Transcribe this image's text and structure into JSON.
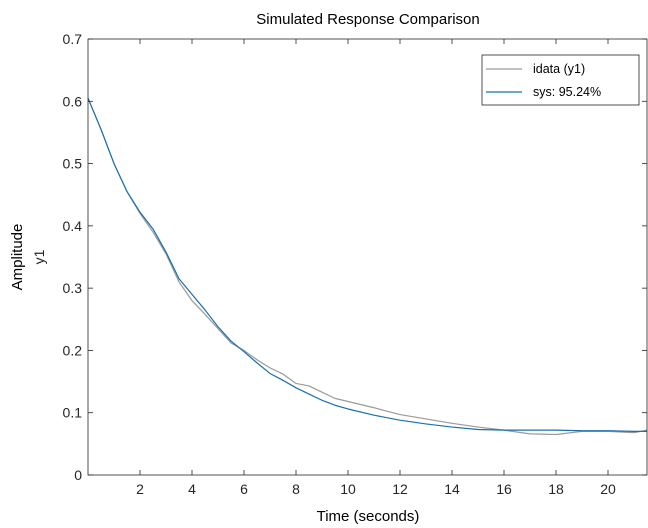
{
  "chart_data": {
    "type": "line",
    "title": "Simulated Response Comparison",
    "xlabel": "Time (seconds)",
    "ylabel": "Amplitude",
    "output_channel_label": "y1",
    "xlim": [
      0,
      21.5
    ],
    "ylim": [
      0,
      0.7
    ],
    "x_ticks": [
      2,
      4,
      6,
      8,
      10,
      12,
      14,
      16,
      18,
      20
    ],
    "y_ticks": [
      0,
      0.1,
      0.2,
      0.3,
      0.4,
      0.5,
      0.6,
      0.7
    ],
    "y_tick_labels": [
      "0",
      "0.1",
      "0.2",
      "0.3",
      "0.4",
      "0.5",
      "0.6",
      "0.7"
    ],
    "grid": false,
    "legend_position": "top-right",
    "series": [
      {
        "name": "idata (y1)",
        "color": "#9a9a9a",
        "x": [
          0,
          0.5,
          1,
          1.5,
          2,
          2.5,
          3,
          3.5,
          4,
          4.5,
          5,
          5.5,
          6,
          6.5,
          7,
          7.5,
          8,
          8.5,
          9,
          9.5,
          10,
          11,
          12,
          13,
          14,
          15,
          16,
          17,
          18,
          19,
          20,
          21,
          21.5
        ],
        "values": [
          0.605,
          0.555,
          0.5,
          0.455,
          0.42,
          0.39,
          0.355,
          0.31,
          0.28,
          0.258,
          0.235,
          0.212,
          0.2,
          0.185,
          0.172,
          0.162,
          0.147,
          0.143,
          0.133,
          0.123,
          0.118,
          0.108,
          0.097,
          0.09,
          0.083,
          0.077,
          0.072,
          0.066,
          0.065,
          0.07,
          0.07,
          0.068,
          0.072
        ]
      },
      {
        "name": "sys: 95.24%",
        "color": "#1a6fae",
        "x": [
          0,
          0.5,
          1,
          1.5,
          2,
          2.5,
          3,
          3.5,
          4,
          4.5,
          5,
          5.5,
          6,
          6.5,
          7,
          7.5,
          8,
          8.5,
          9,
          9.5,
          10,
          11,
          12,
          13,
          14,
          15,
          16,
          17,
          18,
          19,
          20,
          21,
          21.5
        ],
        "values": [
          0.605,
          0.555,
          0.5,
          0.455,
          0.422,
          0.395,
          0.358,
          0.315,
          0.29,
          0.265,
          0.238,
          0.215,
          0.198,
          0.18,
          0.163,
          0.152,
          0.14,
          0.13,
          0.12,
          0.112,
          0.106,
          0.096,
          0.088,
          0.082,
          0.077,
          0.073,
          0.072,
          0.072,
          0.072,
          0.071,
          0.071,
          0.07,
          0.07
        ]
      }
    ]
  }
}
